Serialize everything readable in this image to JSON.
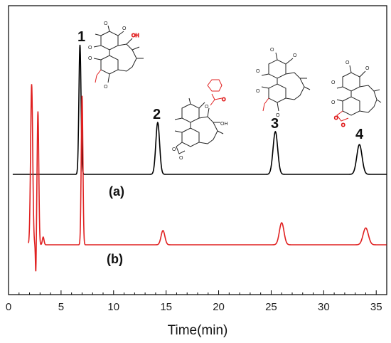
{
  "chart_data": {
    "type": "line",
    "title": "",
    "xlabel": "Time(min)",
    "ylabel": "",
    "xlim": [
      0,
      36
    ],
    "xticks": [
      0,
      5,
      10,
      15,
      20,
      25,
      30,
      35
    ],
    "grid": false,
    "legend": "none",
    "series": [
      {
        "label": "(a)",
        "color": "#000000",
        "baseline": 0.0,
        "peaks": [
          {
            "t": 6.8,
            "h": 1.0,
            "w": 0.1
          },
          {
            "t": 14.2,
            "h": 0.4,
            "w": 0.18
          },
          {
            "t": 25.4,
            "h": 0.33,
            "w": 0.22
          },
          {
            "t": 33.4,
            "h": 0.23,
            "w": 0.25
          }
        ]
      },
      {
        "label": "(b)",
        "color": "#e02020",
        "baseline": 0.0,
        "peaks": [
          {
            "t": 2.2,
            "h": 1.24,
            "w": 0.1
          },
          {
            "t": 2.8,
            "h": 1.03,
            "w": 0.08
          },
          {
            "t": 2.6,
            "h": -0.25,
            "w": 0.04
          },
          {
            "t": 3.3,
            "h": 0.06,
            "w": 0.08
          },
          {
            "t": 7.0,
            "h": 1.15,
            "w": 0.08
          },
          {
            "t": 14.7,
            "h": 0.11,
            "w": 0.18
          },
          {
            "t": 26.0,
            "h": 0.17,
            "w": 0.22
          },
          {
            "t": 34.0,
            "h": 0.13,
            "w": 0.25
          }
        ]
      }
    ],
    "peak_labels": [
      "1",
      "2",
      "3",
      "4"
    ],
    "substituents": {
      "methoxy": "O",
      "hydroxyl": "OH"
    }
  }
}
